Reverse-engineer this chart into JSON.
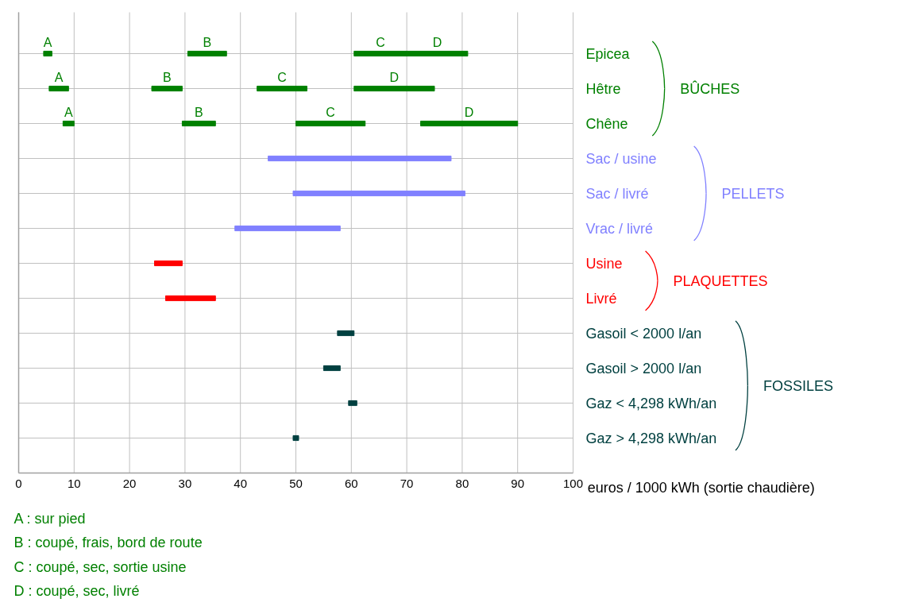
{
  "chart_data": {
    "type": "bar",
    "orientation": "horizontal",
    "categories": [
      "Epicea",
      "Hêtre",
      "Chêne",
      "Sac / usine",
      "Sac / livré",
      "Vrac / livré",
      "Usine",
      "Livré",
      "Gasoil < 2000 l/an",
      "Gasoil > 2000 l/an",
      "Gaz < 4,298 kWh/an",
      "Gaz > 4,298 kWh/an"
    ],
    "series": [
      {
        "color": "#008000",
        "base": [
          4.5,
          5.5,
          8,
          null,
          null,
          null,
          null,
          null,
          null,
          null,
          null,
          null
        ],
        "values": [
          1.5,
          3.5,
          2,
          null,
          null,
          null,
          null,
          null,
          null,
          null,
          null,
          null
        ],
        "value_labels": [
          "A",
          "A",
          "A",
          null,
          null,
          null,
          null,
          null,
          null,
          null,
          null,
          null
        ]
      },
      {
        "color": "#008000",
        "base": [
          30.5,
          24,
          29.5,
          null,
          null,
          null,
          null,
          null,
          null,
          null,
          null,
          null
        ],
        "values": [
          7,
          5.5,
          6,
          null,
          null,
          null,
          null,
          null,
          null,
          null,
          null,
          null
        ],
        "value_labels": [
          "B",
          "B",
          "B",
          null,
          null,
          null,
          null,
          null,
          null,
          null,
          null,
          null
        ]
      },
      {
        "color": "#008000",
        "base": [
          60.5,
          43,
          50,
          null,
          null,
          null,
          null,
          null,
          null,
          null,
          null,
          null
        ],
        "values": [
          9.5,
          9,
          12.5,
          null,
          null,
          null,
          null,
          null,
          null,
          null,
          null,
          null
        ],
        "value_labels": [
          "C",
          "C",
          "C",
          null,
          null,
          null,
          null,
          null,
          null,
          null,
          null,
          null
        ]
      },
      {
        "color": "#008000",
        "base": [
          70,
          60.5,
          72.5,
          null,
          null,
          null,
          null,
          null,
          null,
          null,
          null,
          null
        ],
        "values": [
          11,
          14.5,
          17.5,
          null,
          null,
          null,
          null,
          null,
          null,
          null,
          null,
          null
        ],
        "value_labels": [
          "D",
          "D",
          "D",
          null,
          null,
          null,
          null,
          null,
          null,
          null,
          null,
          null
        ]
      },
      {
        "name": "PELLETS",
        "color": "#8080ff",
        "base": [
          null,
          null,
          null,
          45,
          49.5,
          39,
          null,
          null,
          null,
          null,
          null,
          null
        ],
        "values": [
          null,
          null,
          null,
          33,
          31,
          19,
          null,
          null,
          null,
          null,
          null,
          null
        ]
      },
      {
        "name": "PLAQUETTES",
        "color": "#ff0000",
        "base": [
          null,
          null,
          null,
          null,
          null,
          null,
          24.5,
          26.5,
          null,
          null,
          null,
          null
        ],
        "values": [
          null,
          null,
          null,
          null,
          null,
          null,
          5,
          9,
          null,
          null,
          null,
          null
        ]
      },
      {
        "name": "FOSSILES",
        "color": "#004040",
        "base": [
          null,
          null,
          null,
          null,
          null,
          null,
          null,
          null,
          57.5,
          55,
          59.5,
          49.5
        ],
        "values": [
          null,
          null,
          null,
          null,
          null,
          null,
          null,
          null,
          3,
          3,
          1.5,
          1
        ]
      }
    ],
    "xlim": [
      0,
      100
    ],
    "xticks": [
      0,
      10,
      20,
      30,
      40,
      50,
      60,
      70,
      80,
      90,
      100
    ],
    "xlabel": "euros / 1000 kWh (sortie chaudière)",
    "grid": true,
    "annotations": [
      "BÛCHES",
      "A : sur pied",
      "B : coupé, frais, bord de route",
      "C : coupé, sec, sortie usine",
      "D : coupé, sec, livré"
    ]
  }
}
